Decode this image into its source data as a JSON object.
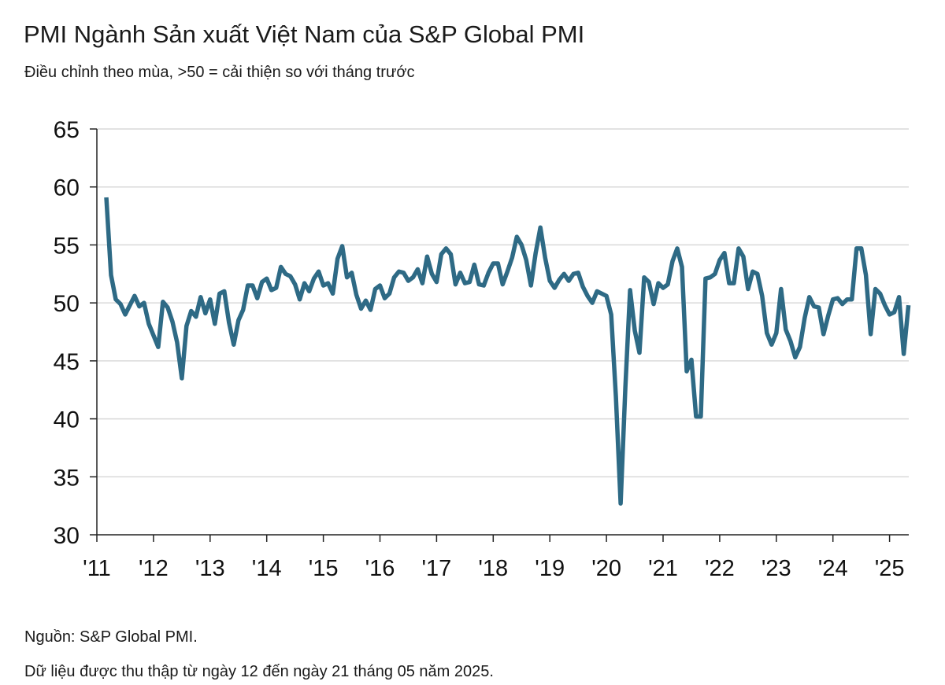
{
  "header": {
    "title": "PMI Ngành Sản xuất Việt Nam của S&P Global PMI",
    "subtitle": "Điều chỉnh theo mùa, >50 = cải thiện so với tháng trước"
  },
  "footer": {
    "source": "Nguồn: S&P Global PMI.",
    "note": "Dữ liệu được thu thập từ ngày 12 đến ngày 21 tháng 05 năm 2025."
  },
  "colors": {
    "line": "#2e6a85",
    "grid": "#d9d9d9",
    "axis": "#222222"
  },
  "chart_data": {
    "type": "line",
    "title": "PMI Ngành Sản xuất Việt Nam của S&P Global PMI",
    "subtitle": "Điều chỉnh theo mùa, >50 = cải thiện so với tháng trước",
    "xlabel": "",
    "ylabel": "",
    "ylim": [
      30,
      65
    ],
    "yticks": [
      30,
      35,
      40,
      45,
      50,
      55,
      60,
      65
    ],
    "xtick_labels": [
      "'11",
      "'12",
      "'13",
      "'14",
      "'15",
      "'16",
      "'17",
      "'18",
      "'19",
      "'20",
      "'21",
      "'22",
      "'23",
      "'24",
      "'25"
    ],
    "grid": "horizontal",
    "legend": "none",
    "x_start": "2011-03",
    "x_end": "2025-05",
    "frequency": "monthly",
    "series": [
      {
        "values": [
          59.1,
          52.4,
          50.3,
          49.9,
          49.0,
          49.8,
          50.6,
          49.7,
          50.0,
          48.2,
          47.2,
          46.2,
          50.1,
          49.6,
          48.4,
          46.6,
          43.5,
          48.0,
          49.3,
          48.8,
          50.5,
          49.1,
          50.3,
          48.2,
          50.8,
          51.0,
          48.3,
          46.4,
          48.5,
          49.4,
          51.5,
          51.5,
          50.4,
          51.8,
          52.1,
          51.1,
          51.3,
          53.1,
          52.5,
          52.3,
          51.6,
          50.3,
          51.7,
          51.0,
          52.1,
          52.7,
          51.5,
          51.7,
          50.8,
          53.8,
          54.9,
          52.2,
          52.6,
          50.7,
          49.5,
          50.2,
          49.4,
          51.2,
          51.5,
          50.4,
          50.8,
          52.2,
          52.7,
          52.6,
          51.9,
          52.2,
          52.9,
          51.7,
          54.0,
          52.5,
          51.8,
          54.2,
          54.7,
          54.2,
          51.6,
          52.6,
          51.7,
          51.8,
          53.3,
          51.6,
          51.5,
          52.6,
          53.4,
          53.4,
          51.6,
          52.7,
          53.9,
          55.7,
          55.0,
          53.7,
          51.5,
          54.3,
          56.5,
          53.9,
          51.9,
          51.3,
          52.0,
          52.5,
          51.9,
          52.5,
          52.6,
          51.4,
          50.6,
          50.0,
          51.0,
          50.8,
          50.6,
          49.0,
          41.9,
          32.7,
          42.7,
          51.1,
          47.6,
          45.7,
          52.2,
          51.8,
          49.9,
          51.7,
          51.3,
          51.6,
          53.6,
          54.7,
          53.1,
          44.1,
          45.1,
          40.2,
          40.2,
          52.1,
          52.2,
          52.5,
          53.7,
          54.3,
          51.7,
          51.7,
          54.7,
          54.0,
          51.2,
          52.7,
          52.5,
          50.6,
          47.4,
          46.4,
          47.4,
          51.2,
          47.7,
          46.7,
          45.3,
          46.2,
          48.7,
          50.5,
          49.7,
          49.6,
          47.3,
          48.9,
          50.3,
          50.4,
          49.9,
          50.3,
          50.3,
          54.7,
          54.7,
          52.4,
          47.3,
          51.2,
          50.8,
          49.8,
          49.0,
          49.2,
          50.5,
          45.6,
          49.8
        ]
      }
    ]
  }
}
